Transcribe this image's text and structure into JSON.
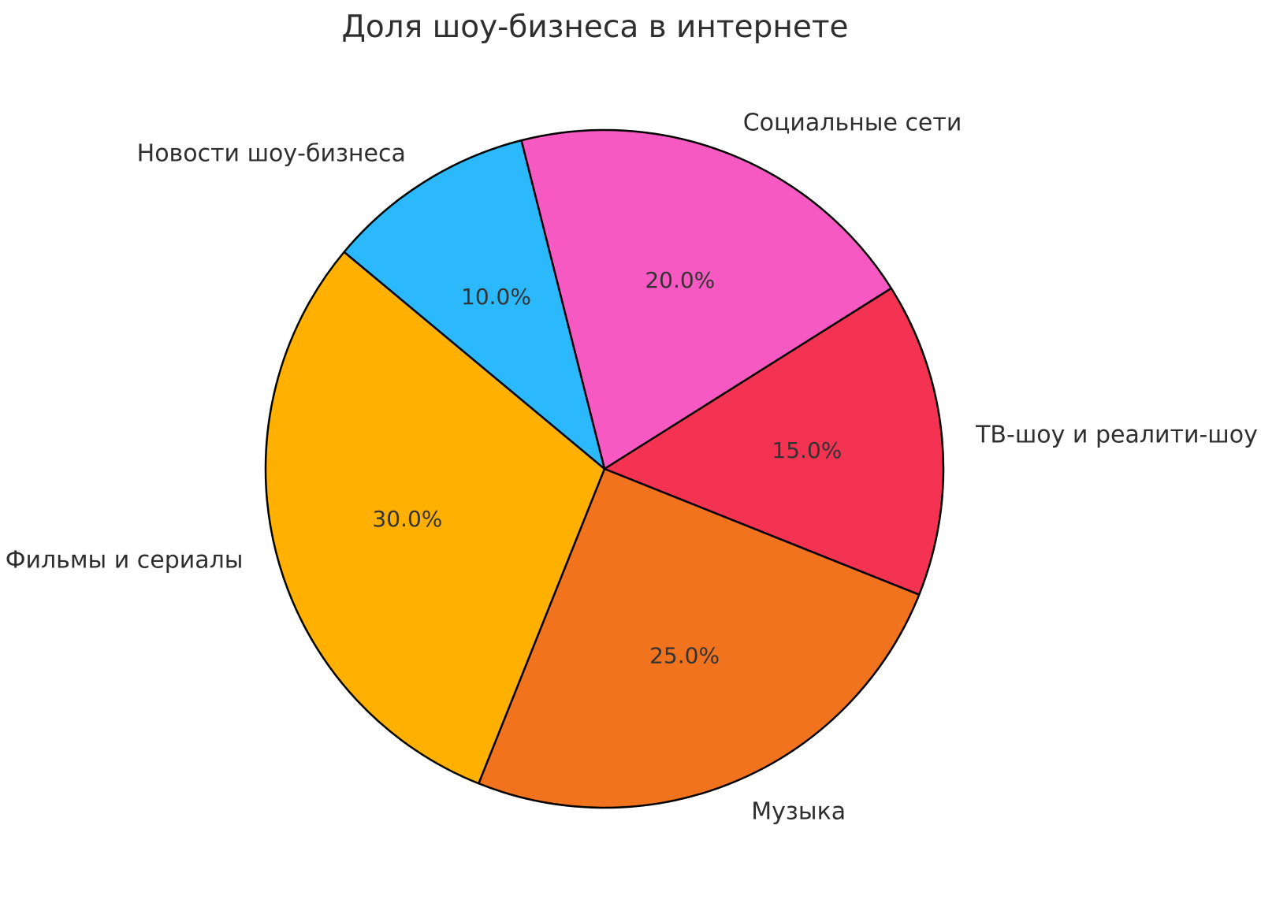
{
  "chart_data": {
    "type": "pie",
    "title": "Доля шоу-бизнеса в интернете",
    "slices": [
      {
        "label": "Социальные сети",
        "value": 20.0,
        "pct_label": "20.0%",
        "color": "#f65ac2"
      },
      {
        "label": "ТВ-шоу и реалити-шоу",
        "value": 15.0,
        "pct_label": "15.0%",
        "color": "#f43251"
      },
      {
        "label": "Музыка",
        "value": 25.0,
        "pct_label": "25.0%",
        "color": "#f1731e"
      },
      {
        "label": "Фильмы и сериалы",
        "value": 30.0,
        "pct_label": "30.0%",
        "color": "#ffb001"
      },
      {
        "label": "Новости шоу-бизнеса",
        "value": 10.0,
        "pct_label": "10.0%",
        "color": "#2cb9fb"
      }
    ],
    "start_angle_deg": 104.2,
    "direction": "clockwise",
    "label_distance": 1.1,
    "pct_distance": 0.6,
    "edge_color": "#000000",
    "text_color": "#2e2e2e",
    "legend": "none",
    "background": "#ffffff"
  }
}
